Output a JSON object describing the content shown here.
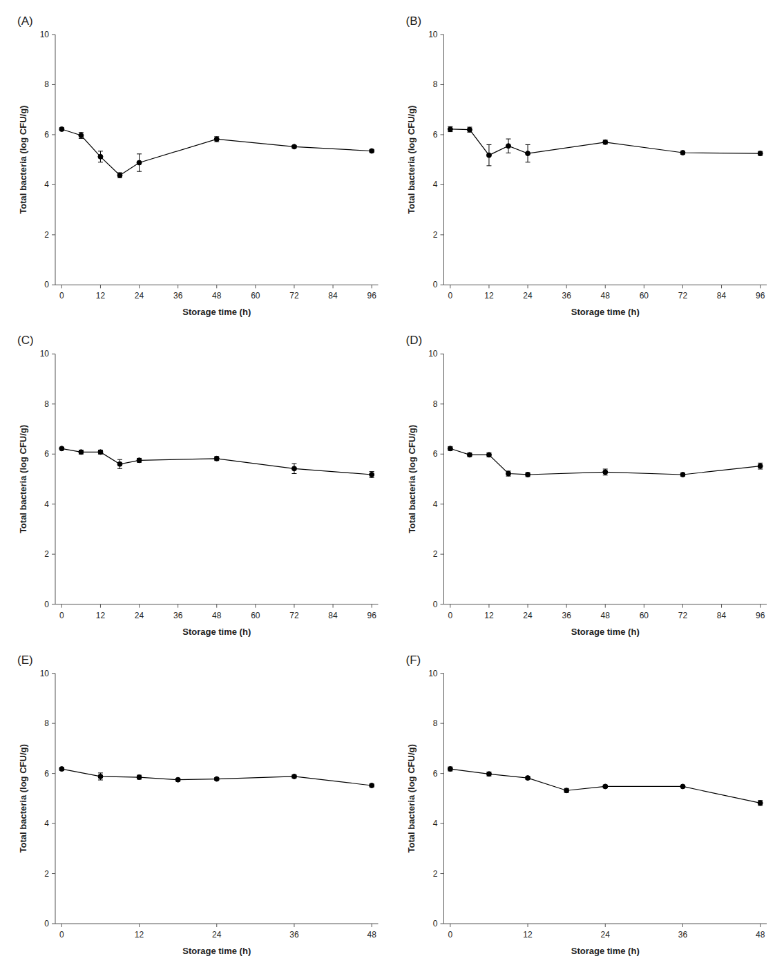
{
  "chart_data": [
    {
      "type": "line",
      "title": "(A)",
      "x": [
        0,
        6,
        12,
        18,
        24,
        48,
        72,
        96
      ],
      "values": [
        6.22,
        5.97,
        5.12,
        4.38,
        4.88,
        5.82,
        5.52,
        5.35
      ],
      "yerr": [
        0.06,
        0.12,
        0.22,
        0.1,
        0.35,
        0.1,
        0.05,
        0.05
      ],
      "color": "black",
      "marker": "circle",
      "xlim": [
        -2,
        98
      ],
      "xticks": [
        0,
        12,
        24,
        36,
        48,
        60,
        72,
        84,
        96
      ],
      "ylim": [
        0,
        10
      ],
      "yticks": [
        0,
        2,
        4,
        6,
        8,
        10
      ],
      "xlabel": "Storage time (h)",
      "ylabel": "Total bacteria (log CFU/g)"
    },
    {
      "type": "line",
      "title": "(B)",
      "x": [
        0,
        6,
        12,
        18,
        24,
        48,
        72,
        96
      ],
      "values": [
        6.22,
        6.2,
        5.18,
        5.55,
        5.25,
        5.7,
        5.28,
        5.25
      ],
      "yerr": [
        0.1,
        0.1,
        0.42,
        0.28,
        0.35,
        0.08,
        0.06,
        0.08
      ],
      "color": "black",
      "marker": "circle",
      "xlim": [
        -2,
        98
      ],
      "xticks": [
        0,
        12,
        24,
        36,
        48,
        60,
        72,
        84,
        96
      ],
      "ylim": [
        0,
        10
      ],
      "yticks": [
        0,
        2,
        4,
        6,
        8,
        10
      ],
      "xlabel": "Storage time (h)",
      "ylabel": "Total bacteria (log CFU/g)"
    },
    {
      "type": "line",
      "title": "(C)",
      "x": [
        0,
        6,
        12,
        18,
        24,
        48,
        72,
        96
      ],
      "values": [
        6.22,
        6.08,
        6.08,
        5.6,
        5.75,
        5.82,
        5.42,
        5.18
      ],
      "yerr": [
        0.05,
        0.08,
        0.08,
        0.18,
        0.08,
        0.08,
        0.2,
        0.12
      ],
      "color": "black",
      "marker": "circle",
      "xlim": [
        -2,
        98
      ],
      "xticks": [
        0,
        12,
        24,
        36,
        48,
        60,
        72,
        84,
        96
      ],
      "ylim": [
        0,
        10
      ],
      "yticks": [
        0,
        2,
        4,
        6,
        8,
        10
      ],
      "xlabel": "Storage time (h)",
      "ylabel": "Total bacteria (log CFU/g)"
    },
    {
      "type": "line",
      "title": "(D)",
      "x": [
        0,
        6,
        12,
        18,
        24,
        48,
        72,
        96
      ],
      "values": [
        6.22,
        5.97,
        5.97,
        5.22,
        5.18,
        5.28,
        5.18,
        5.52
      ],
      "yerr": [
        0.08,
        0.07,
        0.08,
        0.1,
        0.08,
        0.12,
        0.06,
        0.12
      ],
      "color": "black",
      "marker": "circle",
      "xlim": [
        -2,
        98
      ],
      "xticks": [
        0,
        12,
        24,
        36,
        48,
        60,
        72,
        84,
        96
      ],
      "ylim": [
        0,
        10
      ],
      "yticks": [
        0,
        2,
        4,
        6,
        8,
        10
      ],
      "xlabel": "Storage time (h)",
      "ylabel": "Total bacteria (log CFU/g)"
    },
    {
      "type": "line",
      "title": "(E)",
      "x": [
        0,
        6,
        12,
        18,
        24,
        36,
        48
      ],
      "values": [
        6.18,
        5.88,
        5.85,
        5.75,
        5.78,
        5.88,
        5.52
      ],
      "yerr": [
        0.06,
        0.14,
        0.08,
        0.06,
        0.05,
        0.06,
        0.06
      ],
      "color": "black",
      "marker": "circle",
      "xlim": [
        -1,
        49
      ],
      "xticks": [
        0,
        12,
        24,
        36,
        48
      ],
      "ylim": [
        0,
        10
      ],
      "yticks": [
        0,
        2,
        4,
        6,
        8,
        10
      ],
      "xlabel": "Storage time (h)",
      "ylabel": "Total bacteria (log CFU/g)"
    },
    {
      "type": "line",
      "title": "(F)",
      "x": [
        0,
        6,
        12,
        18,
        24,
        36,
        48
      ],
      "values": [
        6.18,
        5.98,
        5.82,
        5.32,
        5.48,
        5.48,
        4.82
      ],
      "yerr": [
        0.08,
        0.08,
        0.06,
        0.08,
        0.06,
        0.05,
        0.1
      ],
      "color": "black",
      "marker": "circle",
      "xlim": [
        -1,
        49
      ],
      "xticks": [
        0,
        12,
        24,
        36,
        48
      ],
      "ylim": [
        0,
        10
      ],
      "yticks": [
        0,
        2,
        4,
        6,
        8,
        10
      ],
      "xlabel": "Storage time (h)",
      "ylabel": "Total bacteria (log CFU/g)"
    }
  ]
}
